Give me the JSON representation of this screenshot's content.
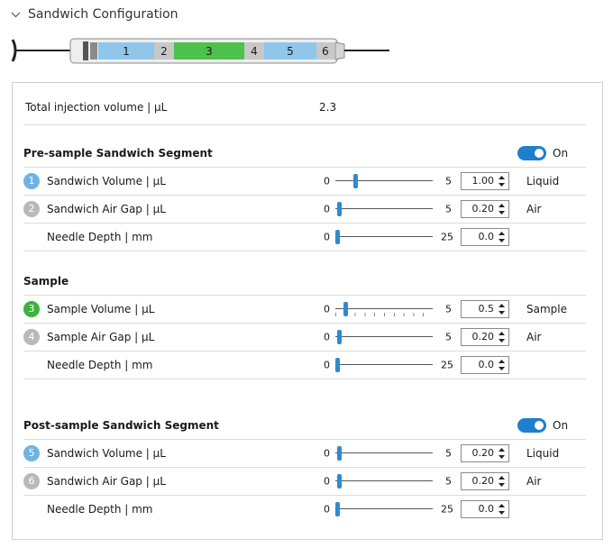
{
  "header": {
    "title": "Sandwich Configuration"
  },
  "syringe": {
    "segments": [
      {
        "label": "1",
        "color": "#8fc6ea"
      },
      {
        "label": "2",
        "color": "#c8c8c8"
      },
      {
        "label": "3",
        "color": "#4cc24c"
      },
      {
        "label": "4",
        "color": "#c8c8c8"
      },
      {
        "label": "5",
        "color": "#8fc6ea"
      },
      {
        "label": "6",
        "color": "#c8c8c8"
      }
    ]
  },
  "total": {
    "label": "Total injection volume | µL",
    "value": "2.3"
  },
  "pre": {
    "title": "Pre-sample Sandwich Segment",
    "toggle_label": "On",
    "rows": [
      {
        "badge": "1",
        "label": "Sandwich Volume | µL",
        "min": "0",
        "max": "5",
        "value": "1.00",
        "fraction": 0.2,
        "tail": "Liquid"
      },
      {
        "badge": "2",
        "label": "Sandwich Air Gap | µL",
        "min": "0",
        "max": "5",
        "value": "0.20",
        "fraction": 0.04,
        "tail": "Air"
      },
      {
        "label": "Needle Depth | mm",
        "min": "0",
        "max": "25",
        "value": "0.0",
        "fraction": 0.0
      }
    ]
  },
  "sample": {
    "title": "Sample",
    "rows": [
      {
        "badge": "3",
        "label": "Sample Volume | µL",
        "min": "0",
        "max": "5",
        "value": "0.5",
        "fraction": 0.1,
        "tail": "Sample"
      },
      {
        "badge": "4",
        "label": "Sample Air Gap | µL",
        "min": "0",
        "max": "5",
        "value": "0.20",
        "fraction": 0.04,
        "tail": "Air"
      },
      {
        "label": "Needle Depth | mm",
        "min": "0",
        "max": "25",
        "value": "0.0",
        "fraction": 0.0
      }
    ]
  },
  "post": {
    "title": "Post-sample Sandwich Segment",
    "toggle_label": "On",
    "rows": [
      {
        "badge": "5",
        "label": "Sandwich Volume | µL",
        "min": "0",
        "max": "5",
        "value": "0.20",
        "fraction": 0.04,
        "tail": "Liquid"
      },
      {
        "badge": "6",
        "label": "Sandwich Air Gap | µL",
        "min": "0",
        "max": "5",
        "value": "0.20",
        "fraction": 0.04,
        "tail": "Air"
      },
      {
        "label": "Needle Depth | mm",
        "min": "0",
        "max": "25",
        "value": "0.0",
        "fraction": 0.0
      }
    ]
  }
}
